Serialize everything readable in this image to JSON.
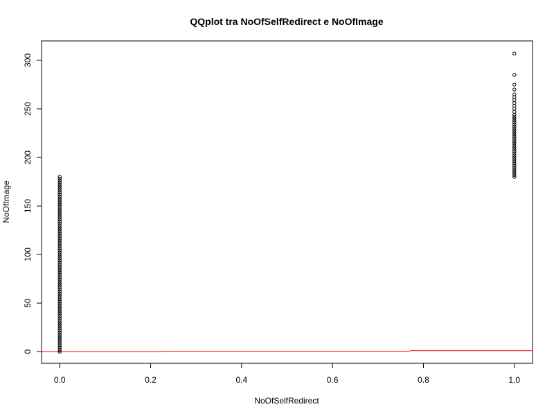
{
  "chart_data": {
    "type": "scatter",
    "title": "QQplot tra NoOfSelfRedirect e NoOfImage",
    "xlabel": "NoOfSelfRedirect",
    "ylabel": "NoOfImage",
    "xlim": [
      -0.04,
      1.04
    ],
    "ylim": [
      -12,
      320
    ],
    "x_ticks": [
      {
        "value": 0.0,
        "label": "0.0"
      },
      {
        "value": 0.2,
        "label": "0.2"
      },
      {
        "value": 0.4,
        "label": "0.4"
      },
      {
        "value": 0.6,
        "label": "0.6"
      },
      {
        "value": 0.8,
        "label": "0.8"
      },
      {
        "value": 1.0,
        "label": "1.0"
      }
    ],
    "y_ticks": [
      {
        "value": 0,
        "label": "0"
      },
      {
        "value": 50,
        "label": "50"
      },
      {
        "value": 100,
        "label": "100"
      },
      {
        "value": 150,
        "label": "150"
      },
      {
        "value": 200,
        "label": "200"
      },
      {
        "value": 250,
        "label": "250"
      },
      {
        "value": 300,
        "label": "300"
      }
    ],
    "grid": false,
    "marker": "open-circle",
    "point_color": "#000000",
    "series": [
      {
        "x_value": 0,
        "y_values": [
          0,
          2,
          4,
          6,
          8,
          10,
          12,
          14,
          16,
          18,
          20,
          22,
          24,
          26,
          28,
          30,
          32,
          34,
          36,
          38,
          40,
          42,
          44,
          46,
          48,
          50,
          52,
          54,
          56,
          58,
          60,
          62,
          64,
          66,
          68,
          70,
          72,
          74,
          76,
          78,
          80,
          82,
          84,
          86,
          88,
          90,
          92,
          94,
          96,
          98,
          100,
          102,
          104,
          106,
          108,
          110,
          112,
          114,
          116,
          118,
          120,
          122,
          124,
          126,
          128,
          130,
          132,
          134,
          136,
          138,
          140,
          142,
          144,
          146,
          148,
          150,
          152,
          154,
          156,
          158,
          160,
          162,
          164,
          166,
          168,
          170,
          172,
          174,
          176,
          178,
          180
        ]
      },
      {
        "x_value": 1,
        "y_values": [
          180,
          182,
          184,
          186,
          188,
          190,
          192,
          194,
          196,
          198,
          200,
          202,
          204,
          206,
          208,
          210,
          212,
          214,
          216,
          218,
          220,
          222,
          224,
          226,
          228,
          230,
          232,
          234,
          236,
          238,
          240,
          242,
          244,
          247,
          250,
          253,
          256,
          259,
          262,
          265,
          270,
          275,
          285,
          307
        ]
      }
    ],
    "reference_line": {
      "color": "#ff0000",
      "steps": [
        {
          "x_start": -0.04,
          "x_end": 0.23,
          "y": 0
        },
        {
          "x_start": 0.23,
          "x_end": 0.77,
          "y": 0.5
        },
        {
          "x_start": 0.77,
          "x_end": 1.04,
          "y": 1
        }
      ]
    }
  }
}
